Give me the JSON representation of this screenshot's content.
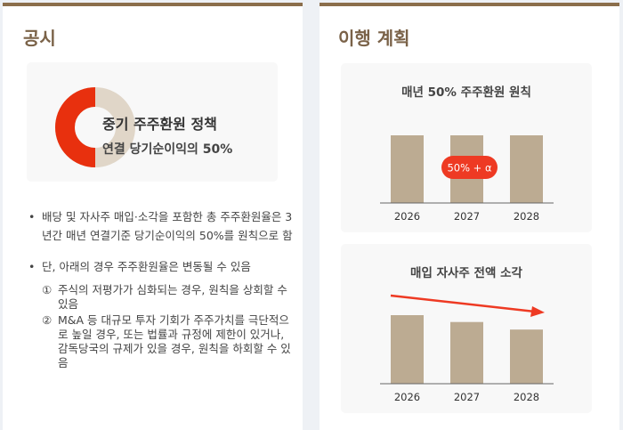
{
  "left": {
    "title": "공시",
    "policy": {
      "line1": "중기 주주환원 정책",
      "line2": "연결 당기순이익의 50%",
      "donut_share": 0.5,
      "colors": {
        "highlight": "#e8300e",
        "rest": "#e0d6c8"
      }
    },
    "bullets": [
      {
        "text": "배당 및 자사주 매입·소각을 포함한 총 주주환원율은 3년간 매년 연결기준 당기순이익의 50%를 원칙으로 함"
      },
      {
        "text": "단, 아래의 경우 주주환원율은 변동될 수 있음"
      }
    ],
    "bullet_symbol": "•",
    "sub_items": [
      {
        "num": "①",
        "text": "주식의 저평가가 심화되는 경우, 원칙을 상회할 수 있음"
      },
      {
        "num": "②",
        "text": "M&A 등 대규모 투자 기회가 주주가치를 극단적으로 높일 경우, 또는 법률과 규정에 제한이 있거나, 감독당국의 규제가 있을 경우, 원칙을 하회할 수 있음"
      }
    ]
  },
  "right": {
    "title": "이행 계획"
  },
  "chart_data": [
    {
      "type": "bar",
      "title": "매년 50% 주주환원 원칙",
      "categories": [
        "2026",
        "2027",
        "2028"
      ],
      "values": [
        50,
        50,
        50
      ],
      "ylim": [
        0,
        50
      ],
      "annotation": "50% + α",
      "bar_color": "#bcab92",
      "annotation_color": "#ee3a23",
      "grid": false
    },
    {
      "type": "bar",
      "title": "매입 자사주 전액 소각",
      "categories": [
        "2026",
        "2027",
        "2028"
      ],
      "values": [
        1.0,
        0.9,
        0.79
      ],
      "ylim": [
        0,
        1.0
      ],
      "trend_arrow": "decreasing",
      "bar_color": "#bcab92",
      "arrow_color": "#ee3a23",
      "grid": false
    }
  ]
}
